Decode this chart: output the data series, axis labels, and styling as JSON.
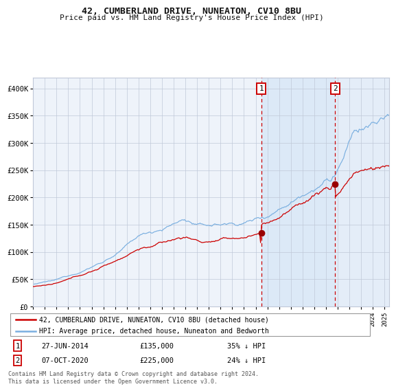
{
  "title": "42, CUMBERLAND DRIVE, NUNEATON, CV10 8BU",
  "subtitle": "Price paid vs. HM Land Registry's House Price Index (HPI)",
  "legend_line1": "42, CUMBERLAND DRIVE, NUNEATON, CV10 8BU (detached house)",
  "legend_line2": "HPI: Average price, detached house, Nuneaton and Bedworth",
  "sale1_date": "27-JUN-2014",
  "sale1_price": 135000,
  "sale1_price_str": "£135,000",
  "sale1_pct": "35% ↓ HPI",
  "sale1_year": 2014.49,
  "sale2_date": "07-OCT-2020",
  "sale2_price": 225000,
  "sale2_price_str": "£225,000",
  "sale2_pct": "24% ↓ HPI",
  "sale2_year": 2020.77,
  "footer": "Contains HM Land Registry data © Crown copyright and database right 2024.\nThis data is licensed under the Open Government Licence v3.0.",
  "hpi_color": "#7aafe0",
  "price_color": "#cc0000",
  "marker_color": "#990000",
  "vline_color": "#cc0000",
  "shade_color": "#dce9f7",
  "grid_color": "#c0c8d8",
  "plot_bg_color": "#eef3fa",
  "background_color": "#ffffff",
  "ylim_max": 420000,
  "start_year": 1995,
  "end_year": 2025
}
